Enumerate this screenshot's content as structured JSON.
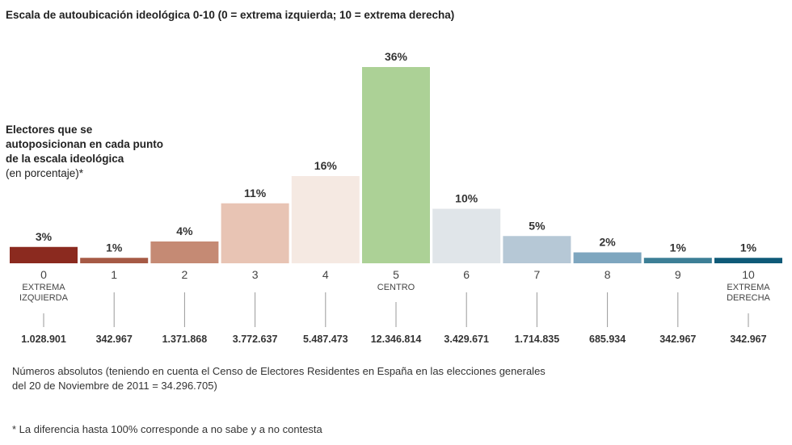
{
  "chart_data": {
    "type": "bar",
    "title": "Escala de autoubicación ideológica 0-10 (0 = extrema izquierda; 10 = extrema derecha)",
    "side_title": [
      "Electores que se",
      "autoposicionan en cada punto",
      "de la escala ideológica"
    ],
    "side_subtitle": "(en porcentaje)*",
    "categories": [
      "0",
      "1",
      "2",
      "3",
      "4",
      "5",
      "6",
      "7",
      "8",
      "9",
      "10"
    ],
    "category_notes": [
      [
        "EXTREMA",
        "IZQUIERDA"
      ],
      [],
      [],
      [],
      [],
      [
        "CENTRO"
      ],
      [],
      [],
      [],
      [],
      [
        "EXTREMA",
        "DERECHA"
      ]
    ],
    "values": [
      3,
      1,
      4,
      11,
      16,
      36,
      10,
      5,
      2,
      1,
      1
    ],
    "value_labels": [
      "3%",
      "1%",
      "4%",
      "11%",
      "16%",
      "36%",
      "10%",
      "5%",
      "2%",
      "1%",
      "1%"
    ],
    "absolutes": [
      "1.028.901",
      "342.967",
      "1.371.868",
      "3.772.637",
      "5.487.473",
      "12.346.814",
      "3.429.671",
      "1.714.835",
      "685.934",
      "342.967",
      "342.967"
    ],
    "colors": [
      "#8b2a1f",
      "#a65a45",
      "#c58a74",
      "#e8c4b4",
      "#f5e9e2",
      "#acd196",
      "#e0e5e9",
      "#b6c8d6",
      "#7ea6bf",
      "#3d7f96",
      "#0f5a78"
    ],
    "ylim": [
      0,
      36
    ]
  },
  "notes": {
    "absolutes_line1": "Números absolutos (teniendo en cuenta el Censo de Electores Residentes en España en las elecciones generales",
    "absolutes_line2": "del 20 de Noviembre de 2011 = 34.296.705)",
    "footnote": "* La diferencia hasta 100% corresponde a no sabe y a no contesta"
  }
}
